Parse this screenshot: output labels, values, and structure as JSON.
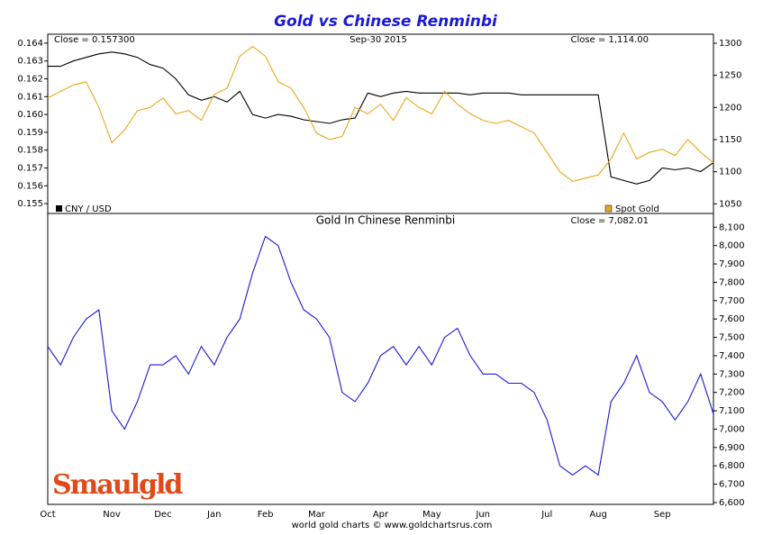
{
  "chart_data": [
    {
      "type": "line",
      "title": "Gold vs Chinese Renminbi",
      "annotations": [
        "Close = 0.157300",
        "Sep-30 2015",
        "Close = 1,114.00"
      ],
      "series": [
        {
          "name": "CNY / USD",
          "color": "#000000",
          "axis": "y",
          "values": [
            0.1627,
            0.1627,
            0.163,
            0.1632,
            0.1634,
            0.1635,
            0.1634,
            0.1632,
            0.1628,
            0.1626,
            0.162,
            0.1611,
            0.1608,
            0.161,
            0.1607,
            0.1613,
            0.16,
            0.1598,
            0.16,
            0.1599,
            0.1597,
            0.1596,
            0.1595,
            0.1597,
            0.1598,
            0.1612,
            0.161,
            0.1612,
            0.1613,
            0.1612,
            0.1612,
            0.1612,
            0.1612,
            0.1611,
            0.1612,
            0.1612,
            0.1612,
            0.1611,
            0.1611,
            0.1611,
            0.1611,
            0.1611,
            0.1611,
            0.1611,
            0.1565,
            0.1563,
            0.1561,
            0.1563,
            0.157,
            0.1569,
            0.157,
            0.1568,
            0.1573
          ]
        },
        {
          "name": "Spot Gold",
          "color": "#e8a81c",
          "axis": "y2",
          "values": [
            1215,
            1225,
            1235,
            1240,
            1200,
            1145,
            1165,
            1195,
            1200,
            1215,
            1190,
            1195,
            1180,
            1220,
            1230,
            1280,
            1295,
            1280,
            1240,
            1230,
            1200,
            1160,
            1150,
            1155,
            1200,
            1190,
            1205,
            1180,
            1215,
            1200,
            1190,
            1225,
            1205,
            1190,
            1180,
            1175,
            1180,
            1170,
            1160,
            1130,
            1100,
            1085,
            1090,
            1095,
            1120,
            1160,
            1120,
            1130,
            1135,
            1125,
            1150,
            1130,
            1114
          ]
        }
      ],
      "ylim": [
        0.15445,
        0.1645
      ],
      "yticks": [
        {
          "value": 0.155,
          "label": "0.155"
        },
        {
          "value": 0.156,
          "label": "0.156"
        },
        {
          "value": 0.157,
          "label": "0.157"
        },
        {
          "value": 0.158,
          "label": "0.158"
        },
        {
          "value": 0.159,
          "label": "0.159"
        },
        {
          "value": 0.16,
          "label": "0.160"
        },
        {
          "value": 0.161,
          "label": "0.161"
        },
        {
          "value": 0.162,
          "label": "0.162"
        },
        {
          "value": 0.163,
          "label": "0.163"
        },
        {
          "value": 0.164,
          "label": "0.164"
        }
      ],
      "y2lim": [
        1035,
        1314
      ],
      "y2ticks": [
        1050,
        1100,
        1150,
        1200,
        1250,
        1300
      ]
    },
    {
      "type": "line",
      "title": "Gold In Chinese Renminbi",
      "annotations": [
        "Close = 7,082.01"
      ],
      "categories": [
        "Oct",
        null,
        null,
        null,
        null,
        "Nov",
        null,
        null,
        null,
        "Dec",
        null,
        null,
        null,
        "Jan",
        null,
        null,
        null,
        "Feb",
        null,
        null,
        null,
        "Mar",
        null,
        null,
        null,
        null,
        "Apr",
        null,
        null,
        null,
        "May",
        null,
        null,
        null,
        "Jun",
        null,
        null,
        null,
        null,
        "Jul",
        null,
        null,
        null,
        "Aug",
        null,
        null,
        null,
        null,
        "Sep",
        null,
        null,
        null,
        null
      ],
      "series": [
        {
          "name": "Gold In Chinese Renminbi",
          "color": "#1a1ad6",
          "axis": "y2",
          "values": [
            7450,
            7350,
            7500,
            7600,
            7650,
            7100,
            7000,
            7150,
            7350,
            7350,
            7400,
            7300,
            7450,
            7350,
            7500,
            7600,
            7850,
            8050,
            8000,
            7800,
            7650,
            7600,
            7500,
            7200,
            7150,
            7250,
            7400,
            7450,
            7350,
            7450,
            7350,
            7500,
            7550,
            7400,
            7300,
            7300,
            7250,
            7250,
            7200,
            7050,
            6800,
            6750,
            6800,
            6750,
            7150,
            7250,
            7400,
            7200,
            7150,
            7050,
            7150,
            7300,
            7082
          ]
        }
      ],
      "y2lim": [
        6590,
        8175
      ],
      "y2ticks": [
        {
          "value": 6600,
          "label": "6,600"
        },
        {
          "value": 6700,
          "label": "6,700"
        },
        {
          "value": 6800,
          "label": "6,800"
        },
        {
          "value": 6900,
          "label": "6,900"
        },
        {
          "value": 7000,
          "label": "7,000"
        },
        {
          "value": 7100,
          "label": "7,100"
        },
        {
          "value": 7200,
          "label": "7,200"
        },
        {
          "value": 7300,
          "label": "7,300"
        },
        {
          "value": 7400,
          "label": "7,400"
        },
        {
          "value": 7500,
          "label": "7,500"
        },
        {
          "value": 7600,
          "label": "7,600"
        },
        {
          "value": 7700,
          "label": "7,700"
        },
        {
          "value": 7800,
          "label": "7,800"
        },
        {
          "value": 7900,
          "label": "7,900"
        },
        {
          "value": 8000,
          "label": "8,000"
        },
        {
          "value": 8100,
          "label": "8,100"
        }
      ]
    }
  ],
  "footer": "world gold charts © www.goldchartsrus.com",
  "logo": "Smaulgld"
}
